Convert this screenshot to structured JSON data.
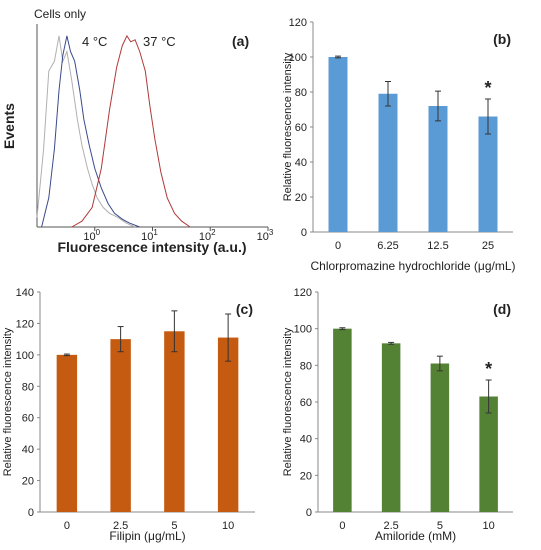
{
  "chart_data": [
    {
      "panel": "(a)",
      "type": "line",
      "ylabel": "Events",
      "xlabel": "Fluorescence intensity (a.u.)",
      "x_ticks": [
        {
          "base": "10",
          "exp": "0"
        },
        {
          "base": "10",
          "exp": "1"
        },
        {
          "base": "10",
          "exp": "2"
        },
        {
          "base": "10",
          "exp": "3"
        }
      ],
      "xscale": "log",
      "xlim": [
        0.1,
        1000
      ],
      "series": [
        {
          "name": "Cells only",
          "color": "#b0b0b0",
          "x": [
            0.1,
            0.13,
            0.16,
            0.2,
            0.24,
            0.28,
            0.33,
            0.4,
            0.5,
            0.6,
            0.75,
            0.9,
            1.1,
            1.4,
            1.8,
            2.5,
            3.5,
            5
          ],
          "y": [
            0.05,
            0.4,
            0.8,
            0.85,
            0.98,
            0.85,
            0.9,
            0.75,
            0.55,
            0.42,
            0.3,
            0.22,
            0.15,
            0.1,
            0.07,
            0.05,
            0.02,
            0.0
          ]
        },
        {
          "name": "4 °C",
          "color": "#3a4a8c",
          "x": [
            0.12,
            0.16,
            0.2,
            0.24,
            0.28,
            0.33,
            0.38,
            0.45,
            0.55,
            0.65,
            0.8,
            1.0,
            1.3,
            1.7,
            2.2,
            3,
            4,
            6
          ],
          "y": [
            0.0,
            0.15,
            0.4,
            0.7,
            0.88,
            0.98,
            0.9,
            0.85,
            0.7,
            0.55,
            0.42,
            0.3,
            0.2,
            0.12,
            0.07,
            0.04,
            0.02,
            0.0
          ]
        },
        {
          "name": "37 °C",
          "color": "#b03a3a",
          "x": [
            0.4,
            0.6,
            0.9,
            1.3,
            1.8,
            2.4,
            3.0,
            3.6,
            4.2,
            5,
            6,
            7.5,
            9,
            11,
            14,
            18,
            24,
            32,
            45
          ],
          "y": [
            0.0,
            0.03,
            0.1,
            0.3,
            0.6,
            0.82,
            0.93,
            0.98,
            0.95,
            0.96,
            0.9,
            0.8,
            0.62,
            0.45,
            0.28,
            0.15,
            0.07,
            0.03,
            0.0
          ]
        }
      ]
    },
    {
      "panel": "(b)",
      "type": "bar",
      "color": "#5b9bd5",
      "categories": [
        "0",
        "6.25",
        "12.5",
        "25"
      ],
      "values": [
        100,
        79,
        72,
        66
      ],
      "errors": [
        0.5,
        7,
        8.5,
        10
      ],
      "annotations": [
        "",
        "",
        "",
        "*"
      ],
      "ylabel": "Relative fluorescence intensity",
      "xlabel": "Chlorpromazine hydrochloride (μg/mL)",
      "ylim": [
        0,
        120
      ],
      "yticks": [
        0,
        20,
        40,
        60,
        80,
        100,
        120
      ]
    },
    {
      "panel": "(c)",
      "type": "bar",
      "color": "#c55a11",
      "categories": [
        "0",
        "2.5",
        "5",
        "10"
      ],
      "values": [
        100,
        110,
        115,
        111
      ],
      "errors": [
        0.5,
        8,
        13,
        15
      ],
      "annotations": [
        "",
        "",
        "",
        ""
      ],
      "ylabel": "Relative fluorescence intensity",
      "xlabel": "Filipin (μg/mL)",
      "ylim": [
        0,
        140
      ],
      "yticks": [
        0,
        20,
        40,
        60,
        80,
        100,
        120,
        140
      ]
    },
    {
      "panel": "(d)",
      "type": "bar",
      "color": "#548235",
      "categories": [
        "0",
        "2.5",
        "5",
        "10"
      ],
      "values": [
        100,
        92,
        81,
        63
      ],
      "errors": [
        0.5,
        0.5,
        4,
        9
      ],
      "annotations": [
        "",
        "",
        "",
        "*"
      ],
      "ylabel": "Relative fluorescence intensity",
      "xlabel": "Amiloride (mM)",
      "ylim": [
        0,
        120
      ],
      "yticks": [
        0,
        20,
        40,
        60,
        80,
        100,
        120
      ]
    }
  ]
}
